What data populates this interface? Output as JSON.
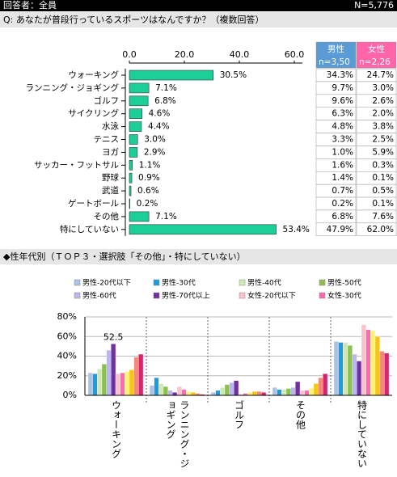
{
  "header": {
    "respondents": "回答者：全員",
    "n": "N=5,776"
  },
  "question": "Q:  あなたが普段行っているスポーツはなんですか？（複数回答）",
  "table": {
    "headers": [
      {
        "label": "男性",
        "n": "n=3,50"
      },
      {
        "label": "女性",
        "n": "n=2,26"
      }
    ],
    "rows": [
      [
        "34.3%",
        "24.7%"
      ],
      [
        "9.7%",
        "3.0%"
      ],
      [
        "9.6%",
        "2.6%"
      ],
      [
        "6.3%",
        "2.0%"
      ],
      [
        "4.8%",
        "3.8%"
      ],
      [
        "3.3%",
        "2.5%"
      ],
      [
        "1.0%",
        "5.9%"
      ],
      [
        "1.6%",
        "0.3%"
      ],
      [
        "1.4%",
        "0.1%"
      ],
      [
        "0.7%",
        "0.5%"
      ],
      [
        "0.2%",
        "0.1%"
      ],
      [
        "6.8%",
        "7.6%"
      ],
      [
        "47.9%",
        "62.0%"
      ]
    ]
  },
  "section_title": "◆性年代別（ＴＯＰ３・選択肢「その他」・特にしていない）",
  "chart_data": [
    {
      "type": "bar",
      "orientation": "horizontal",
      "categories": [
        "ウォーキング",
        "ランニング・ジョギング",
        "ゴルフ",
        "サイクリング",
        "水泳",
        "テニス",
        "ヨガ",
        "サッカー・フットサル",
        "野球",
        "武道",
        "ゲートボール",
        "その他",
        "特にしていない"
      ],
      "values": [
        30.5,
        7.1,
        6.8,
        4.6,
        4.4,
        3.0,
        2.9,
        1.1,
        0.9,
        0.6,
        0.2,
        7.1,
        53.4
      ],
      "value_labels": [
        "30.5%",
        "7.1%",
        "6.8%",
        "4.6%",
        "4.4%",
        "3.0%",
        "2.9%",
        "1.1%",
        "0.9%",
        "0.6%",
        "0.2%",
        "7.1%",
        "53.4%"
      ],
      "color": "#1ccf98",
      "xlim": [
        0,
        60
      ],
      "xticks": [
        {
          "value": 0,
          "label": "0.0"
        },
        {
          "value": 20,
          "label": "20.0"
        },
        {
          "value": 40,
          "label": "40.0"
        },
        {
          "value": 60,
          "label": "60.0"
        }
      ]
    },
    {
      "type": "bar",
      "orientation": "vertical",
      "grid": true,
      "categories": [
        "ウォーキング",
        "ランニング・ジョギング",
        "ゴルフ",
        "その他",
        "特にしていない"
      ],
      "ylim": [
        0,
        80
      ],
      "yticks": [
        {
          "value": 0,
          "label": "0%"
        },
        {
          "value": 20,
          "label": "20%"
        },
        {
          "value": 40,
          "label": "40%"
        },
        {
          "value": 60,
          "label": "60%"
        },
        {
          "value": 80,
          "label": "80%"
        }
      ],
      "series": [
        {
          "name": "男性-20代以下",
          "color": "#a9c4e6",
          "values": [
            23,
            10,
            3,
            8,
            55
          ]
        },
        {
          "name": "男性-30代",
          "color": "#1e9be0",
          "values": [
            22,
            18,
            5,
            6,
            54
          ]
        },
        {
          "name": "男性-40代",
          "color": "#cfe8b8",
          "values": [
            27,
            12,
            8,
            6,
            54
          ]
        },
        {
          "name": "男性-50代",
          "color": "#8cc152",
          "values": [
            32,
            9,
            11,
            7,
            51
          ]
        },
        {
          "name": "男性-60代",
          "color": "#bdb6ea",
          "values": [
            46,
            5,
            13,
            8,
            42
          ]
        },
        {
          "name": "男性-70代以上",
          "color": "#7030a0",
          "values": [
            52.5,
            3,
            15,
            14,
            35
          ],
          "value_labels": [
            "52.5",
            null,
            null,
            null,
            null
          ]
        },
        {
          "name": "女性-20代以下",
          "color": "#f9c3cc",
          "values": [
            22,
            9,
            1,
            5,
            72
          ]
        },
        {
          "name": "女性-30代",
          "color": "#ff69b4",
          "values": [
            23,
            6,
            2,
            5,
            67
          ]
        },
        {
          "name": null,
          "color": "#fff176",
          "values": [
            24,
            4,
            3,
            7,
            66
          ]
        },
        {
          "name": null,
          "color": "#f5c518",
          "values": [
            26,
            3,
            4,
            12,
            60
          ]
        },
        {
          "name": null,
          "color": "#f08a7a",
          "values": [
            39,
            2,
            4,
            18,
            45
          ]
        },
        {
          "name": null,
          "color": "#d6246e",
          "values": [
            42,
            1,
            3,
            22,
            43
          ]
        }
      ]
    }
  ]
}
